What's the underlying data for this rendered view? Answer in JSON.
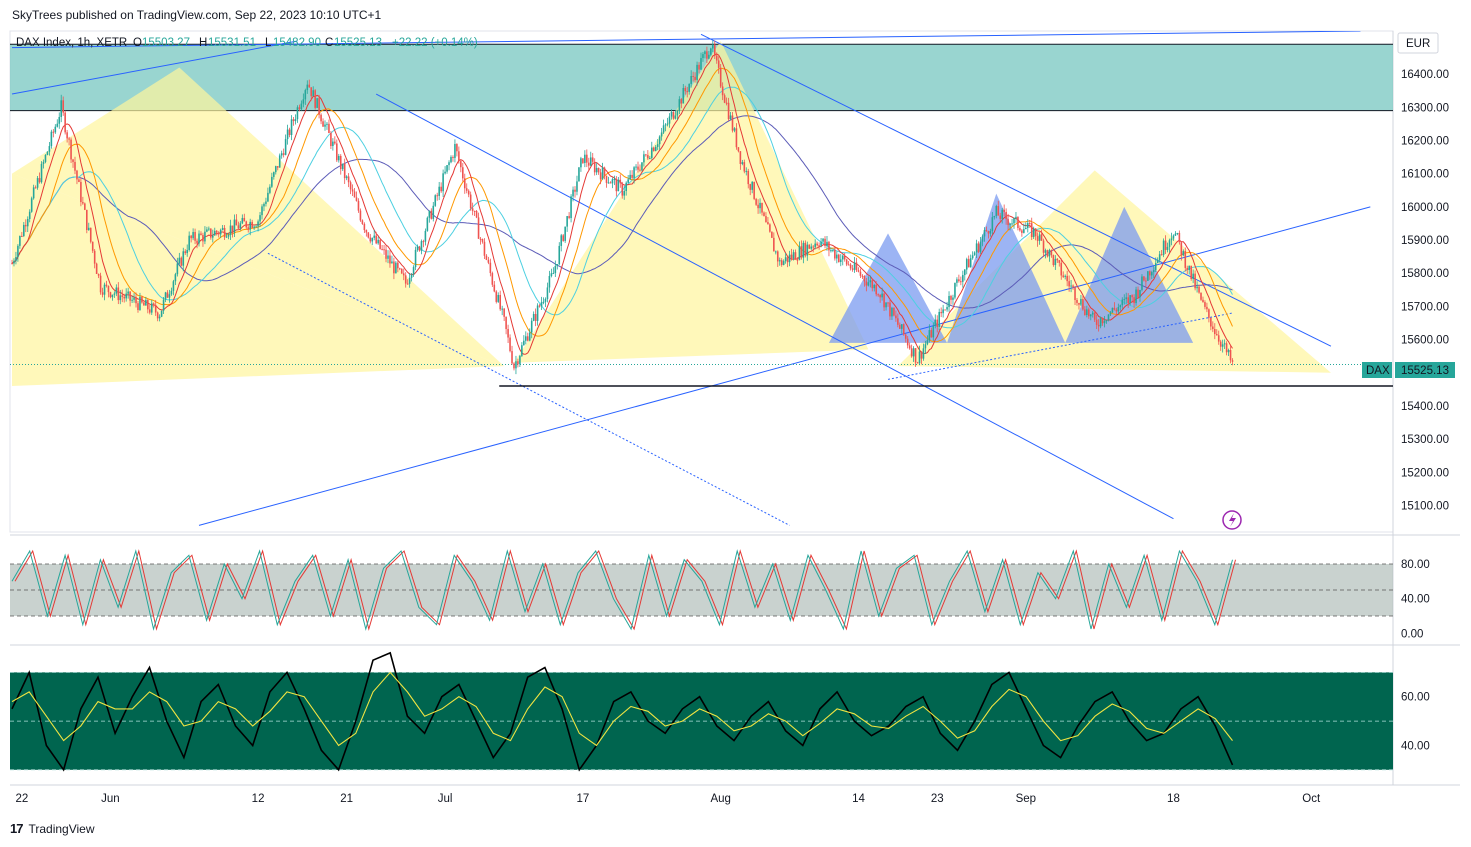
{
  "header": {
    "publish_line": "SkyTrees published on TradingView.com, Sep 22, 2023 10:10 UTC+1"
  },
  "legend": {
    "symbol": "DAX Index, 1h, XETR",
    "o_label": "O",
    "o_value": "15503.27",
    "h_label": "H",
    "h_value": "15531.51",
    "l_label": "L",
    "l_value": "15482.90",
    "c_label": "C",
    "c_value": "15525.13",
    "change": "+22.22 (+0.14%)"
  },
  "currency": "EUR",
  "price_tag": {
    "name": "DAX",
    "value": "15525.13"
  },
  "footer": {
    "brand": "TradingView",
    "logo": "17"
  },
  "colors": {
    "green_zone": "#80cbc4",
    "triangle_yellow": "#fff59d",
    "triangle_blue": "#7b9bf0",
    "candle_up": "#26a69a",
    "candle_down": "#ef5350",
    "trendline": "#2962ff",
    "ma_red": "#e53935",
    "ma_orange": "#ff9800",
    "ma_cyan": "#4dd0e1",
    "ma_purple": "#5c5cb8",
    "osc2_bg": "#00654f",
    "osc1_bg": "#b2bfbb"
  },
  "chart_data": [
    {
      "type": "candlestick",
      "title": "DAX Index, 1h, XETR",
      "y_ticks": [
        16400,
        16300,
        16200,
        16100,
        16000,
        15900,
        15800,
        15700,
        15600,
        15500,
        15400,
        15300,
        15200,
        15100
      ],
      "ylim": [
        15020,
        16530
      ],
      "x_ticks": [
        "22",
        "Jun",
        "12",
        "21",
        "Jul",
        "17",
        "Aug",
        "14",
        "23",
        "Sep",
        "18",
        "Oct"
      ],
      "x_tick_index": [
        1,
        10,
        25,
        34,
        44,
        58,
        72,
        86,
        94,
        103,
        118,
        132
      ],
      "key_points": [
        {
          "i": 0,
          "v": 15830
        },
        {
          "i": 5,
          "v": 16300
        },
        {
          "i": 9,
          "v": 15760
        },
        {
          "i": 15,
          "v": 15680
        },
        {
          "i": 18,
          "v": 15900
        },
        {
          "i": 25,
          "v": 15960
        },
        {
          "i": 30,
          "v": 16380
        },
        {
          "i": 36,
          "v": 15930
        },
        {
          "i": 40,
          "v": 15770
        },
        {
          "i": 45,
          "v": 16180
        },
        {
          "i": 50,
          "v": 15650
        },
        {
          "i": 51,
          "v": 15520
        },
        {
          "i": 55,
          "v": 15800
        },
        {
          "i": 58,
          "v": 16150
        },
        {
          "i": 62,
          "v": 16050
        },
        {
          "i": 66,
          "v": 16220
        },
        {
          "i": 71,
          "v": 16490
        },
        {
          "i": 74,
          "v": 16150
        },
        {
          "i": 78,
          "v": 15830
        },
        {
          "i": 82,
          "v": 15900
        },
        {
          "i": 88,
          "v": 15750
        },
        {
          "i": 92,
          "v": 15540
        },
        {
          "i": 96,
          "v": 15770
        },
        {
          "i": 100,
          "v": 15980
        },
        {
          "i": 104,
          "v": 15920
        },
        {
          "i": 110,
          "v": 15650
        },
        {
          "i": 114,
          "v": 15730
        },
        {
          "i": 118,
          "v": 15930
        },
        {
          "i": 121,
          "v": 15700
        },
        {
          "i": 124,
          "v": 15525
        }
      ],
      "last_value": 15525.13,
      "moving_averages": [
        "red",
        "orange",
        "cyan",
        "purple"
      ]
    },
    {
      "type": "line",
      "title": "",
      "y_ticks": [
        80,
        40,
        0
      ],
      "ylim": [
        -10,
        110
      ],
      "band": [
        20,
        80
      ],
      "series": [
        {
          "values": [
            60,
            95,
            20,
            90,
            10,
            85,
            30,
            95,
            5,
            70,
            90,
            15,
            80,
            40,
            95,
            10,
            60,
            90,
            20,
            85,
            5,
            75,
            95,
            30,
            10,
            90,
            60,
            15,
            95,
            25,
            80,
            10,
            70,
            95,
            40,
            5,
            90,
            20,
            85,
            60,
            10,
            95,
            30,
            80,
            15,
            90,
            50,
            5,
            95,
            20,
            75,
            90,
            10,
            60,
            95,
            25,
            85,
            10,
            70,
            40,
            95,
            5,
            80,
            30,
            90,
            15,
            95,
            60,
            10,
            85
          ]
        }
      ]
    },
    {
      "type": "line",
      "title": "",
      "y_ticks": [
        60,
        40
      ],
      "ylim": [
        25,
        80
      ],
      "band": [
        30,
        70
      ],
      "series": [
        {
          "values": [
            55,
            70,
            40,
            30,
            55,
            68,
            45,
            60,
            72,
            50,
            35,
            58,
            65,
            48,
            40,
            62,
            70,
            55,
            38,
            30,
            50,
            75,
            78,
            52,
            45,
            60,
            65,
            50,
            35,
            45,
            68,
            72,
            55,
            30,
            40,
            58,
            62,
            50,
            45,
            55,
            60,
            48,
            42,
            52,
            58,
            46,
            40,
            55,
            62,
            50,
            44,
            48,
            56,
            60,
            45,
            38,
            50,
            65,
            70,
            55,
            40,
            35,
            48,
            58,
            62,
            50,
            42,
            45,
            55,
            60,
            48,
            32
          ]
        },
        {
          "values": [
            58,
            62,
            52,
            42,
            48,
            58,
            55,
            55,
            62,
            58,
            48,
            50,
            58,
            55,
            48,
            54,
            62,
            60,
            50,
            40,
            45,
            62,
            70,
            62,
            52,
            55,
            60,
            56,
            45,
            42,
            55,
            64,
            60,
            45,
            40,
            50,
            56,
            54,
            48,
            50,
            55,
            52,
            46,
            48,
            53,
            50,
            44,
            49,
            55,
            53,
            48,
            47,
            52,
            56,
            50,
            43,
            46,
            56,
            63,
            60,
            50,
            42,
            44,
            52,
            57,
            54,
            47,
            45,
            50,
            55,
            51,
            42
          ]
        }
      ]
    }
  ]
}
